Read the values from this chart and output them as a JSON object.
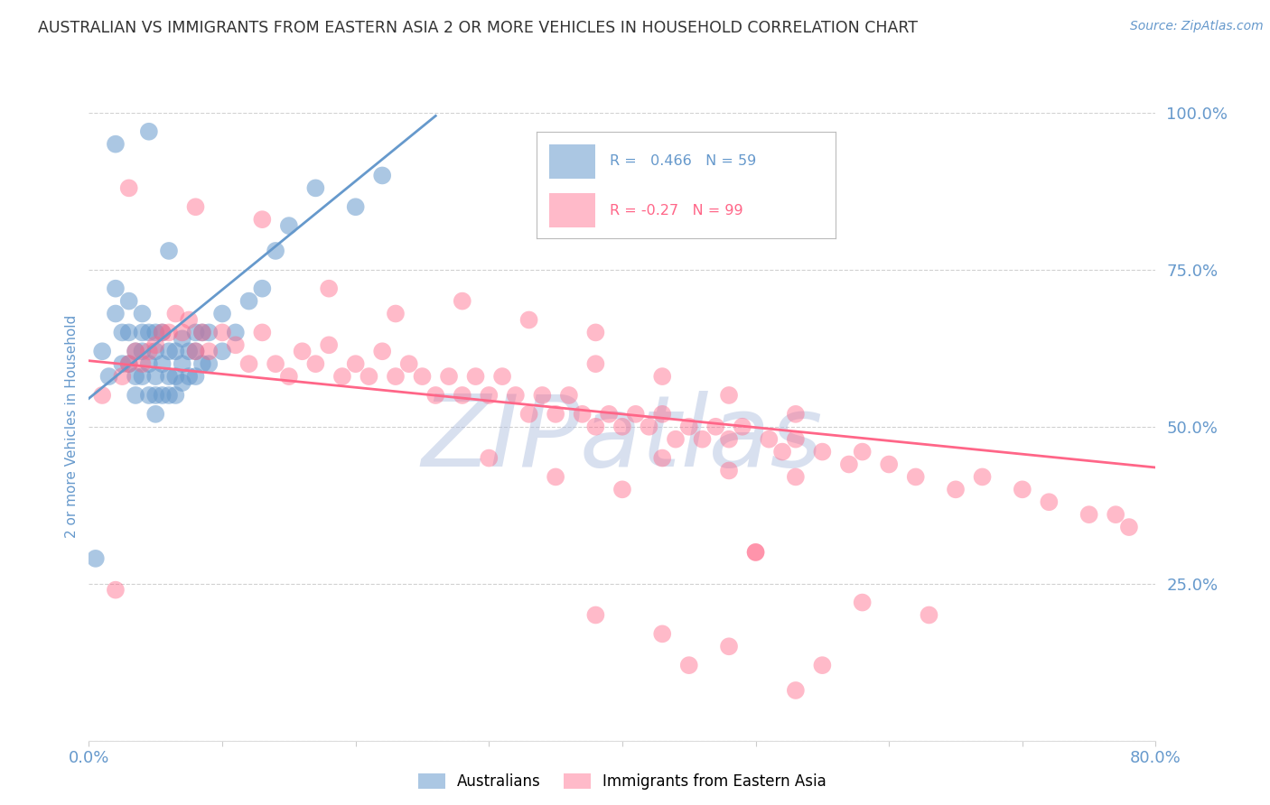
{
  "title": "AUSTRALIAN VS IMMIGRANTS FROM EASTERN ASIA 2 OR MORE VEHICLES IN HOUSEHOLD CORRELATION CHART",
  "source": "Source: ZipAtlas.com",
  "ylabel": "2 or more Vehicles in Household",
  "x_min": 0.0,
  "x_max": 0.8,
  "y_min": 0.0,
  "y_max": 1.0,
  "x_ticks": [
    0.0,
    0.1,
    0.2,
    0.3,
    0.4,
    0.5,
    0.6,
    0.7,
    0.8
  ],
  "x_tick_labels": [
    "0.0%",
    "",
    "",
    "",
    "",
    "",
    "",
    "",
    "80.0%"
  ],
  "y_ticks": [
    0.0,
    0.25,
    0.5,
    0.75,
    1.0
  ],
  "y_tick_labels": [
    "",
    "25.0%",
    "50.0%",
    "75.0%",
    "100.0%"
  ],
  "blue_color": "#6699CC",
  "pink_color": "#FF6688",
  "blue_R": 0.466,
  "blue_N": 59,
  "pink_R": -0.27,
  "pink_N": 99,
  "legend_label_blue": "Australians",
  "legend_label_pink": "Immigrants from Eastern Asia",
  "watermark": "ZIPatlas",
  "watermark_color": "#AABBDD",
  "blue_scatter_x": [
    0.005,
    0.01,
    0.015,
    0.02,
    0.02,
    0.025,
    0.025,
    0.03,
    0.03,
    0.03,
    0.035,
    0.035,
    0.035,
    0.04,
    0.04,
    0.04,
    0.04,
    0.045,
    0.045,
    0.045,
    0.05,
    0.05,
    0.05,
    0.05,
    0.05,
    0.055,
    0.055,
    0.055,
    0.06,
    0.06,
    0.06,
    0.065,
    0.065,
    0.065,
    0.07,
    0.07,
    0.07,
    0.075,
    0.075,
    0.08,
    0.08,
    0.08,
    0.085,
    0.085,
    0.09,
    0.09,
    0.1,
    0.1,
    0.11,
    0.12,
    0.13,
    0.14,
    0.15,
    0.17,
    0.2,
    0.22,
    0.02,
    0.045,
    0.06
  ],
  "blue_scatter_y": [
    0.29,
    0.62,
    0.58,
    0.72,
    0.68,
    0.6,
    0.65,
    0.6,
    0.65,
    0.7,
    0.55,
    0.58,
    0.62,
    0.58,
    0.62,
    0.65,
    0.68,
    0.55,
    0.6,
    0.65,
    0.52,
    0.55,
    0.58,
    0.62,
    0.65,
    0.55,
    0.6,
    0.65,
    0.55,
    0.58,
    0.62,
    0.55,
    0.58,
    0.62,
    0.57,
    0.6,
    0.64,
    0.58,
    0.62,
    0.58,
    0.62,
    0.65,
    0.6,
    0.65,
    0.6,
    0.65,
    0.62,
    0.68,
    0.65,
    0.7,
    0.72,
    0.78,
    0.82,
    0.88,
    0.85,
    0.9,
    0.95,
    0.97,
    0.78
  ],
  "pink_scatter_x": [
    0.01,
    0.02,
    0.025,
    0.03,
    0.035,
    0.04,
    0.045,
    0.05,
    0.055,
    0.06,
    0.065,
    0.07,
    0.075,
    0.08,
    0.085,
    0.09,
    0.1,
    0.11,
    0.12,
    0.13,
    0.14,
    0.15,
    0.16,
    0.17,
    0.18,
    0.19,
    0.2,
    0.21,
    0.22,
    0.23,
    0.24,
    0.25,
    0.26,
    0.27,
    0.28,
    0.29,
    0.3,
    0.31,
    0.32,
    0.33,
    0.34,
    0.35,
    0.36,
    0.37,
    0.38,
    0.39,
    0.4,
    0.41,
    0.42,
    0.43,
    0.44,
    0.45,
    0.46,
    0.47,
    0.48,
    0.49,
    0.5,
    0.51,
    0.52,
    0.53,
    0.55,
    0.57,
    0.58,
    0.6,
    0.62,
    0.65,
    0.67,
    0.7,
    0.72,
    0.75,
    0.77,
    0.78,
    0.03,
    0.08,
    0.13,
    0.18,
    0.23,
    0.28,
    0.33,
    0.38,
    0.43,
    0.48,
    0.53,
    0.3,
    0.35,
    0.4,
    0.45,
    0.5,
    0.55,
    0.38,
    0.43,
    0.48,
    0.53,
    0.38,
    0.43,
    0.48,
    0.53,
    0.58,
    0.63
  ],
  "pink_scatter_y": [
    0.55,
    0.24,
    0.58,
    0.6,
    0.62,
    0.6,
    0.62,
    0.63,
    0.65,
    0.65,
    0.68,
    0.65,
    0.67,
    0.62,
    0.65,
    0.62,
    0.65,
    0.63,
    0.6,
    0.65,
    0.6,
    0.58,
    0.62,
    0.6,
    0.63,
    0.58,
    0.6,
    0.58,
    0.62,
    0.58,
    0.6,
    0.58,
    0.55,
    0.58,
    0.55,
    0.58,
    0.55,
    0.58,
    0.55,
    0.52,
    0.55,
    0.52,
    0.55,
    0.52,
    0.5,
    0.52,
    0.5,
    0.52,
    0.5,
    0.52,
    0.48,
    0.5,
    0.48,
    0.5,
    0.48,
    0.5,
    0.3,
    0.48,
    0.46,
    0.48,
    0.46,
    0.44,
    0.46,
    0.44,
    0.42,
    0.4,
    0.42,
    0.4,
    0.38,
    0.36,
    0.36,
    0.34,
    0.88,
    0.85,
    0.83,
    0.72,
    0.68,
    0.7,
    0.67,
    0.65,
    0.45,
    0.43,
    0.42,
    0.45,
    0.42,
    0.4,
    0.12,
    0.3,
    0.12,
    0.2,
    0.17,
    0.15,
    0.08,
    0.6,
    0.58,
    0.55,
    0.52,
    0.22,
    0.2
  ],
  "blue_line_x": [
    0.0,
    0.26
  ],
  "blue_line_y": [
    0.545,
    0.995
  ],
  "pink_line_x": [
    0.0,
    0.8
  ],
  "pink_line_y": [
    0.605,
    0.435
  ],
  "background_color": "#FFFFFF",
  "grid_color": "#CCCCCC",
  "title_color": "#333333",
  "tick_label_color": "#6699CC"
}
